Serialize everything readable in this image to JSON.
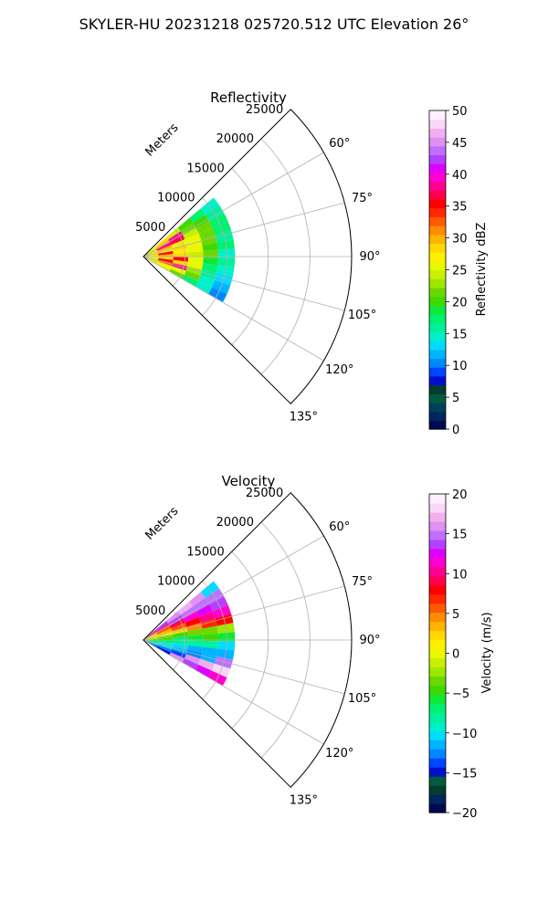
{
  "suptitle": "SKYLER-HU  20231218  025720.512 UTC Elevation 26°",
  "chart_data": [
    {
      "type": "polar-wedge",
      "title": "Reflectivity",
      "range_axis_label": "Meters",
      "range_ticks": [
        5000,
        10000,
        15000,
        20000,
        25000
      ],
      "range_tick_labels": [
        "5000",
        "10000",
        "15000",
        "20000",
        "25000"
      ],
      "range_max": 25000,
      "azimuth_range": [
        45,
        135
      ],
      "azimuth_ticks": [
        60,
        75,
        90,
        105,
        120,
        135
      ],
      "azimuth_tick_labels": [
        "60°",
        "75°",
        "90°",
        "105°",
        "120°",
        "135°"
      ],
      "grid": true,
      "colorbar": {
        "label": "Reflectivity dBZ",
        "range": [
          0,
          50
        ],
        "ticks": [
          0,
          5,
          10,
          15,
          20,
          25,
          30,
          35,
          40,
          45,
          50
        ],
        "tick_labels": [
          "0",
          "5",
          "10",
          "15",
          "20",
          "25",
          "30",
          "35",
          "40",
          "45",
          "50"
        ],
        "colors": [
          "#000a50",
          "#00265e",
          "#00405a",
          "#045a3e",
          "#063c2e",
          "#0010c8",
          "#0044ff",
          "#0088ff",
          "#00b4ff",
          "#00dcff",
          "#00f0c8",
          "#00f09c",
          "#00f070",
          "#10e838",
          "#40d800",
          "#6cd800",
          "#9ce800",
          "#c8f000",
          "#e8f800",
          "#fff000",
          "#ffd800",
          "#ffb400",
          "#ff8c00",
          "#ff5a00",
          "#ff2800",
          "#ff0000",
          "#ff0050",
          "#ff0090",
          "#ff00d0",
          "#e000ff",
          "#b440ff",
          "#c070ff",
          "#e090f0",
          "#f0b0f0",
          "#f8d8f8",
          "#fff0ff"
        ]
      },
      "data_extent": {
        "max_range_m": 11000,
        "azimuth_span": [
          50,
          120
        ]
      },
      "data_rings": [
        {
          "range_m": [
            0,
            1800
          ],
          "values": [
            25,
            25,
            24,
            26,
            28,
            28,
            27,
            26,
            25,
            25,
            24,
            25
          ]
        },
        {
          "range_m": [
            1800,
            3600
          ],
          "values": [
            28,
            30,
            38,
            30,
            27,
            36,
            30,
            28,
            35,
            32,
            27,
            26
          ]
        },
        {
          "range_m": [
            3600,
            5400
          ],
          "values": [
            24,
            38,
            37,
            26,
            28,
            27,
            29,
            36,
            28,
            38,
            25,
            22
          ]
        },
        {
          "range_m": [
            5400,
            7200
          ],
          "values": [
            20,
            22,
            24,
            25,
            26,
            25,
            24,
            26,
            25,
            23,
            21,
            18
          ]
        },
        {
          "range_m": [
            7200,
            9000
          ],
          "values": [
            18,
            20,
            22,
            21,
            22,
            20,
            21,
            19,
            18,
            16,
            15,
            14
          ]
        },
        {
          "range_m": [
            9000,
            11000
          ],
          "values": [
            14,
            16,
            17,
            18,
            16,
            17,
            15,
            16,
            15,
            13,
            12,
            11
          ]
        }
      ]
    },
    {
      "type": "polar-wedge",
      "title": "Velocity",
      "range_axis_label": "Meters",
      "range_ticks": [
        5000,
        10000,
        15000,
        20000,
        25000
      ],
      "range_tick_labels": [
        "5000",
        "10000",
        "15000",
        "20000",
        "25000"
      ],
      "range_max": 25000,
      "azimuth_range": [
        45,
        135
      ],
      "azimuth_ticks": [
        60,
        75,
        90,
        105,
        120,
        135
      ],
      "azimuth_tick_labels": [
        "60°",
        "75°",
        "90°",
        "105°",
        "120°",
        "135°"
      ],
      "grid": true,
      "colorbar": {
        "label": "Velocity (m/s)",
        "range": [
          -20,
          20
        ],
        "ticks": [
          -20,
          -15,
          -10,
          -5,
          0,
          5,
          10,
          15,
          20
        ],
        "tick_labels": [
          "−20",
          "−15",
          "−10",
          "−5",
          "0",
          "5",
          "10",
          "15",
          "20"
        ],
        "colors": [
          "#000a50",
          "#00265e",
          "#063c2e",
          "#045a3e",
          "#0010c8",
          "#0044ff",
          "#0088ff",
          "#00b4ff",
          "#00dcff",
          "#00f0c8",
          "#00f09c",
          "#00f070",
          "#10e838",
          "#40d800",
          "#6cd800",
          "#9ce800",
          "#c8f000",
          "#e8f800",
          "#fff000",
          "#ffd800",
          "#ffb400",
          "#ff8c00",
          "#ff5a00",
          "#ff2800",
          "#ff0000",
          "#ff0050",
          "#ff0090",
          "#ff00d0",
          "#e000ff",
          "#b440ff",
          "#c070ff",
          "#e090f0",
          "#f0b0f0",
          "#f8d8f8",
          "#fff0ff"
        ]
      },
      "data_extent": {
        "max_range_m": 11000,
        "azimuth_span": [
          50,
          120
        ]
      },
      "data_rings": [
        {
          "range_m": [
            0,
            1800
          ],
          "values": [
            10,
            6,
            3,
            1,
            0,
            -2,
            -4,
            -6,
            -7,
            -9,
            -12,
            -14
          ]
        },
        {
          "range_m": [
            1800,
            3600
          ],
          "values": [
            14,
            10,
            6,
            3,
            1,
            -3,
            -5,
            -7,
            -9,
            -10,
            -13,
            -15
          ]
        },
        {
          "range_m": [
            3600,
            5400
          ],
          "values": [
            16,
            14,
            9,
            6,
            2,
            -5,
            -7,
            -8,
            -10,
            -12,
            -14,
            16
          ]
        },
        {
          "range_m": [
            5400,
            7200
          ],
          "values": [
            17,
            15,
            11,
            8,
            4,
            -4,
            -6,
            -8,
            -11,
            -13,
            16,
            14
          ]
        },
        {
          "range_m": [
            7200,
            9000
          ],
          "values": [
            16,
            15,
            13,
            10,
            7,
            -3,
            -5,
            -8,
            -11,
            -12,
            17,
            12
          ]
        },
        {
          "range_m": [
            9000,
            11000
          ],
          "values": [
            -10,
            15,
            14,
            11,
            8,
            -2,
            -6,
            -10,
            -12,
            15,
            18,
            11
          ]
        }
      ]
    }
  ]
}
